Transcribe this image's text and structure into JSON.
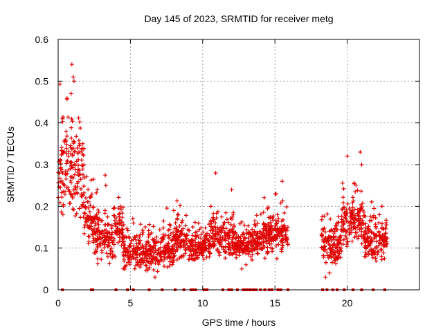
{
  "chart_data": {
    "type": "scatter",
    "title": "Day 145 of 2023, SRMTID for receiver metg",
    "xlabel": "GPS time / hours",
    "ylabel": "SRMTID / TECUs",
    "xlim": [
      0,
      25
    ],
    "ylim": [
      0,
      0.6
    ],
    "xticks": [
      0,
      5,
      10,
      15,
      20
    ],
    "yticks": [
      0,
      0.1,
      0.2,
      0.3,
      0.4,
      0.5,
      0.6
    ],
    "xtick_labels": [
      "0",
      "5",
      "10",
      "15",
      "20"
    ],
    "ytick_labels": [
      "0",
      "0.1",
      "0.2",
      "0.3",
      "0.4",
      "0.5",
      "0.6"
    ],
    "grid": true,
    "marker": "+",
    "color": "#e00000",
    "data_segments": [
      {
        "start": 0.0,
        "end": 1.8,
        "mean": 0.28,
        "spread": 0.09
      },
      {
        "start": 1.8,
        "end": 2.5,
        "mean": 0.17,
        "spread": 0.05
      },
      {
        "start": 2.5,
        "end": 4.0,
        "mean": 0.13,
        "spread": 0.05
      },
      {
        "start": 4.0,
        "end": 4.5,
        "mean": 0.15,
        "spread": 0.04
      },
      {
        "start": 4.5,
        "end": 8.0,
        "mean": 0.09,
        "spread": 0.035
      },
      {
        "start": 8.0,
        "end": 9.0,
        "mean": 0.12,
        "spread": 0.035
      },
      {
        "start": 9.0,
        "end": 10.5,
        "mean": 0.1,
        "spread": 0.03
      },
      {
        "start": 10.5,
        "end": 12.2,
        "mean": 0.13,
        "spread": 0.045
      },
      {
        "start": 12.2,
        "end": 13.5,
        "mean": 0.11,
        "spread": 0.03
      },
      {
        "start": 13.5,
        "end": 14.2,
        "mean": 0.12,
        "spread": 0.03
      },
      {
        "start": 14.2,
        "end": 15.9,
        "mean": 0.13,
        "spread": 0.04
      },
      {
        "start": 18.2,
        "end": 19.6,
        "mean": 0.11,
        "spread": 0.04
      },
      {
        "start": 19.6,
        "end": 21.2,
        "mean": 0.16,
        "spread": 0.05
      },
      {
        "start": 21.2,
        "end": 22.8,
        "mean": 0.12,
        "spread": 0.04
      }
    ],
    "peaks": [
      {
        "x": 0.95,
        "y": 0.54
      },
      {
        "x": 1.05,
        "y": 0.51
      },
      {
        "x": 1.1,
        "y": 0.5
      },
      {
        "x": 0.9,
        "y": 0.47
      },
      {
        "x": 0.3,
        "y": 0.41
      },
      {
        "x": 1.5,
        "y": 0.35
      },
      {
        "x": 10.9,
        "y": 0.28
      },
      {
        "x": 12.0,
        "y": 0.24
      },
      {
        "x": 15.5,
        "y": 0.26
      },
      {
        "x": 20.0,
        "y": 0.32
      },
      {
        "x": 20.9,
        "y": 0.33
      },
      {
        "x": 21.0,
        "y": 0.3
      },
      {
        "x": 2.7,
        "y": 0.24
      },
      {
        "x": 3.3,
        "y": 0.25
      },
      {
        "x": 8.0,
        "y": 0.19
      },
      {
        "x": 4.3,
        "y": 0.2
      },
      {
        "x": 22.4,
        "y": 0.2
      },
      {
        "x": 12.7,
        "y": 0.05
      },
      {
        "x": 18.5,
        "y": 0.03
      },
      {
        "x": 6.7,
        "y": 0.03
      }
    ],
    "gap_markers_hours": [
      0.3,
      2.3,
      2.4,
      4.0,
      4.8,
      5.2,
      6.3,
      7.2,
      8.1,
      8.7,
      9.2,
      9.3,
      9.5,
      10.1,
      10.3,
      11.4,
      11.8,
      12.0,
      12.4,
      12.8,
      12.9,
      13.1,
      13.3,
      13.5,
      13.7,
      14.0,
      14.3,
      14.6,
      14.8,
      15.2,
      15.4,
      15.9,
      18.3,
      18.6,
      19.0,
      19.3,
      19.8,
      20.4,
      21.0,
      21.8,
      22.6
    ]
  }
}
